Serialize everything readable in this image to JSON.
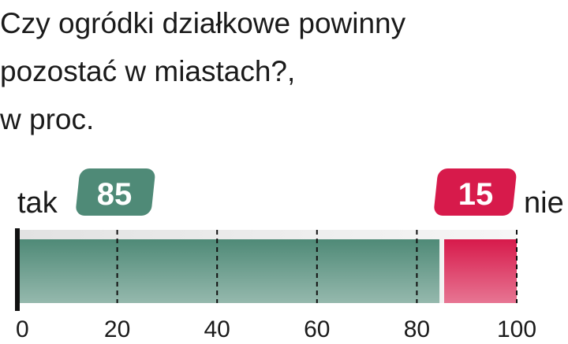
{
  "chart_data": {
    "type": "stacked-bar",
    "title": [
      "Czy ogródki działkowe powinny",
      "pozostać w miastach?,",
      "w proc."
    ],
    "series": [
      {
        "name": "tak",
        "color": "#4f8a77",
        "values": [
          85
        ]
      },
      {
        "name": "nie",
        "color": "#d71a4b",
        "values": [
          15
        ]
      }
    ],
    "xlim": [
      0,
      100
    ],
    "xticks": [
      0,
      20,
      40,
      60,
      80,
      100
    ],
    "grid": true
  }
}
